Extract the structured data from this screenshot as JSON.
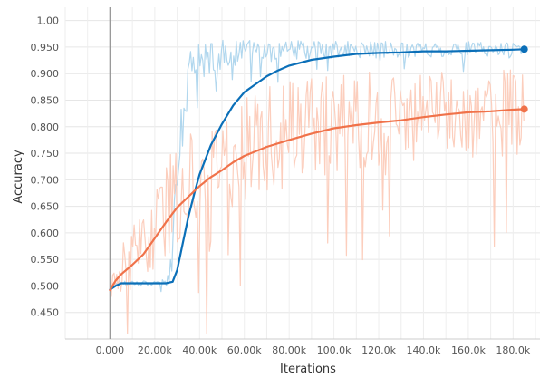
{
  "chart_data": {
    "type": "line",
    "title": "",
    "xlabel": "Iterations",
    "ylabel": "Accuracy",
    "xlim": [
      -20000,
      192000
    ],
    "ylim": [
      0.4,
      1.025
    ],
    "grid": true,
    "x_ticks": [
      {
        "value": 0,
        "label": "0.000"
      },
      {
        "value": 20000,
        "label": "20.00k"
      },
      {
        "value": 40000,
        "label": "40.00k"
      },
      {
        "value": 60000,
        "label": "60.00k"
      },
      {
        "value": 80000,
        "label": "80.00k"
      },
      {
        "value": 100000,
        "label": "100.0k"
      },
      {
        "value": 120000,
        "label": "120.0k"
      },
      {
        "value": 140000,
        "label": "140.0k"
      },
      {
        "value": 160000,
        "label": "160.0k"
      },
      {
        "value": 180000,
        "label": "180.0k"
      }
    ],
    "y_ticks": [
      {
        "value": 0.45,
        "label": "0.450"
      },
      {
        "value": 0.5,
        "label": "0.500"
      },
      {
        "value": 0.55,
        "label": "0.550"
      },
      {
        "value": 0.6,
        "label": "0.600"
      },
      {
        "value": 0.65,
        "label": "0.650"
      },
      {
        "value": 0.7,
        "label": "0.700"
      },
      {
        "value": 0.75,
        "label": "0.750"
      },
      {
        "value": 0.8,
        "label": "0.800"
      },
      {
        "value": 0.85,
        "label": "0.850"
      },
      {
        "value": 0.9,
        "label": "0.900"
      },
      {
        "value": 0.95,
        "label": "0.950"
      },
      {
        "value": 1.0,
        "label": "1.00"
      }
    ],
    "series": [
      {
        "color": "#0b6fb8",
        "raw_color": "#a9d3ec",
        "x": [
          0,
          2500,
          5000,
          10000,
          15000,
          20000,
          25000,
          28000,
          30000,
          32000,
          35000,
          38000,
          40000,
          45000,
          50000,
          55000,
          60000,
          65000,
          70000,
          75000,
          80000,
          90000,
          100000,
          110000,
          120000,
          130000,
          140000,
          150000,
          160000,
          170000,
          180000,
          185000
        ],
        "smoothed": [
          0.493,
          0.5,
          0.505,
          0.505,
          0.505,
          0.505,
          0.505,
          0.508,
          0.53,
          0.57,
          0.63,
          0.68,
          0.71,
          0.765,
          0.805,
          0.84,
          0.865,
          0.88,
          0.895,
          0.906,
          0.915,
          0.926,
          0.932,
          0.937,
          0.939,
          0.94,
          0.942,
          0.942,
          0.943,
          0.944,
          0.945,
          0.946
        ],
        "raw_center": [
          0.493,
          0.505,
          0.506,
          0.506,
          0.506,
          0.506,
          0.506,
          0.56,
          0.68,
          0.8,
          0.89,
          0.915,
          0.925,
          0.93,
          0.935,
          0.938,
          0.94,
          0.941,
          0.942,
          0.943,
          0.943,
          0.944,
          0.944,
          0.945,
          0.945,
          0.945,
          0.945,
          0.946,
          0.946,
          0.946,
          0.946,
          0.946
        ],
        "raw_spread": [
          0.005,
          0.005,
          0.005,
          0.005,
          0.006,
          0.006,
          0.01,
          0.05,
          0.07,
          0.07,
          0.055,
          0.04,
          0.035,
          0.03,
          0.028,
          0.025,
          0.023,
          0.022,
          0.02,
          0.02,
          0.02,
          0.018,
          0.018,
          0.016,
          0.016,
          0.015,
          0.015,
          0.015,
          0.015,
          0.015,
          0.015,
          0.015
        ]
      },
      {
        "color": "#f0724a",
        "raw_color": "#fcc9b6",
        "x": [
          0,
          2500,
          5000,
          10000,
          15000,
          20000,
          25000,
          30000,
          35000,
          40000,
          45000,
          50000,
          55000,
          60000,
          70000,
          80000,
          90000,
          100000,
          110000,
          120000,
          130000,
          140000,
          150000,
          160000,
          170000,
          180000,
          185000
        ],
        "smoothed": [
          0.492,
          0.51,
          0.522,
          0.54,
          0.56,
          0.59,
          0.62,
          0.648,
          0.668,
          0.688,
          0.705,
          0.718,
          0.733,
          0.745,
          0.762,
          0.775,
          0.787,
          0.797,
          0.803,
          0.808,
          0.812,
          0.818,
          0.823,
          0.827,
          0.829,
          0.832,
          0.833
        ],
        "raw_center": [
          0.492,
          0.515,
          0.53,
          0.55,
          0.575,
          0.61,
          0.645,
          0.672,
          0.692,
          0.708,
          0.723,
          0.736,
          0.748,
          0.758,
          0.774,
          0.786,
          0.797,
          0.806,
          0.812,
          0.816,
          0.82,
          0.824,
          0.827,
          0.829,
          0.831,
          0.833,
          0.833
        ],
        "raw_spread": [
          0.01,
          0.04,
          0.05,
          0.06,
          0.07,
          0.08,
          0.09,
          0.1,
          0.1,
          0.1,
          0.1,
          0.1,
          0.1,
          0.1,
          0.1,
          0.1,
          0.1,
          0.09,
          0.09,
          0.09,
          0.09,
          0.09,
          0.09,
          0.09,
          0.09,
          0.09,
          0.09
        ]
      }
    ]
  }
}
